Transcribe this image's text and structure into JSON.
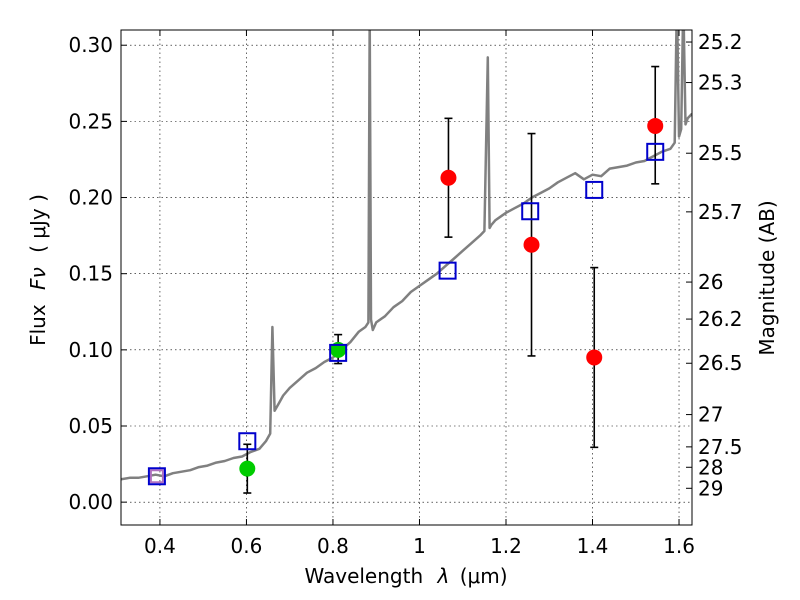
{
  "chart_data": {
    "type": "scatter",
    "xlabel": "Wavelength",
    "xlabel_symbol": "λ",
    "xlabel_unit": "(μm)",
    "ylabel": "Flux",
    "ylabel_symbol": "Fν",
    "ylabel_unit": "( μJy )",
    "ylabel_right": "Magnitude (AB)",
    "xlim": [
      0.31,
      1.63
    ],
    "ylim": [
      -0.015,
      0.31
    ],
    "grid": true,
    "x_ticks": [
      0.4,
      0.6,
      0.8,
      1.0,
      1.2,
      1.4,
      1.6
    ],
    "x_tick_labels": [
      "0.4",
      "0.6",
      "0.8",
      "1",
      "1.2",
      "1.4",
      "1.6"
    ],
    "y_ticks": [
      0.0,
      0.05,
      0.1,
      0.15,
      0.2,
      0.25,
      0.3
    ],
    "y_tick_labels": [
      "0.00",
      "0.05",
      "0.10",
      "0.15",
      "0.20",
      "0.25",
      "0.30"
    ],
    "right_axis_labels": [
      {
        "label": "25.2",
        "flux": 0.3021
      },
      {
        "label": "25.3",
        "flux": 0.2755
      },
      {
        "label": "25.5",
        "flux": 0.2291
      },
      {
        "label": "25.7",
        "flux": 0.1906
      },
      {
        "label": "26",
        "flux": 0.1445
      },
      {
        "label": "26.2",
        "flux": 0.1202
      },
      {
        "label": "26.5",
        "flux": 0.0912
      },
      {
        "label": "27",
        "flux": 0.0575
      },
      {
        "label": "27.5",
        "flux": 0.0363
      },
      {
        "label": "28",
        "flux": 0.0229
      },
      {
        "label": "29",
        "flux": 0.0091
      }
    ],
    "spectrum": {
      "name": "model spectrum",
      "color": "#808080",
      "x": [
        0.31,
        0.33,
        0.35,
        0.37,
        0.39,
        0.41,
        0.43,
        0.45,
        0.47,
        0.49,
        0.51,
        0.53,
        0.55,
        0.57,
        0.59,
        0.61,
        0.63,
        0.645,
        0.655,
        0.66,
        0.665,
        0.675,
        0.685,
        0.7,
        0.72,
        0.74,
        0.76,
        0.78,
        0.8,
        0.82,
        0.84,
        0.86,
        0.875,
        0.882,
        0.885,
        0.888,
        0.892,
        0.9,
        0.92,
        0.94,
        0.96,
        0.98,
        1.0,
        1.02,
        1.04,
        1.06,
        1.08,
        1.1,
        1.12,
        1.14,
        1.15,
        1.158,
        1.162,
        1.166,
        1.175,
        1.19,
        1.2,
        1.22,
        1.24,
        1.26,
        1.28,
        1.3,
        1.32,
        1.34,
        1.36,
        1.38,
        1.4,
        1.42,
        1.44,
        1.46,
        1.48,
        1.5,
        1.52,
        1.54,
        1.56,
        1.58,
        1.59,
        1.595,
        1.6,
        1.605,
        1.61,
        1.615,
        1.62,
        1.63
      ],
      "y": [
        0.015,
        0.016,
        0.016,
        0.017,
        0.018,
        0.017,
        0.019,
        0.02,
        0.021,
        0.023,
        0.024,
        0.026,
        0.027,
        0.029,
        0.03,
        0.033,
        0.035,
        0.04,
        0.045,
        0.115,
        0.06,
        0.065,
        0.07,
        0.075,
        0.08,
        0.085,
        0.088,
        0.092,
        0.095,
        0.1,
        0.105,
        0.112,
        0.115,
        0.118,
        0.32,
        0.12,
        0.113,
        0.118,
        0.122,
        0.128,
        0.132,
        0.138,
        0.142,
        0.146,
        0.15,
        0.155,
        0.16,
        0.165,
        0.17,
        0.175,
        0.178,
        0.292,
        0.18,
        0.182,
        0.185,
        0.188,
        0.19,
        0.193,
        0.196,
        0.2,
        0.203,
        0.206,
        0.21,
        0.213,
        0.216,
        0.212,
        0.215,
        0.214,
        0.219,
        0.22,
        0.221,
        0.223,
        0.224,
        0.227,
        0.23,
        0.232,
        0.236,
        0.33,
        0.24,
        0.245,
        0.33,
        0.248,
        0.252,
        0.255
      ]
    },
    "model_points": {
      "name": "model photometry",
      "marker": "open-square",
      "color": "#0000cc",
      "x": [
        0.393,
        0.602,
        0.812,
        1.065,
        1.256,
        1.404,
        1.545
      ],
      "y": [
        0.017,
        0.04,
        0.098,
        0.152,
        0.191,
        0.205,
        0.23
      ]
    },
    "detections": {
      "name": "observed fluxes",
      "marker": "filled-circle",
      "points": [
        {
          "x": 0.602,
          "y": 0.022,
          "err_low": 0.006,
          "err_high": 0.038,
          "color": "#00cc00"
        },
        {
          "x": 0.812,
          "y": 0.1,
          "err_low": 0.091,
          "err_high": 0.11,
          "color": "#00cc00"
        },
        {
          "x": 1.067,
          "y": 0.213,
          "err_low": 0.174,
          "err_high": 0.252,
          "color": "#ff0000"
        },
        {
          "x": 1.259,
          "y": 0.169,
          "err_low": 0.096,
          "err_high": 0.242,
          "color": "#ff0000"
        },
        {
          "x": 1.404,
          "y": 0.095,
          "err_low": 0.036,
          "err_high": 0.154,
          "color": "#ff0000"
        },
        {
          "x": 1.545,
          "y": 0.247,
          "err_low": 0.209,
          "err_high": 0.286,
          "color": "#ff0000"
        }
      ]
    },
    "upper_limit_marker": {
      "x": 0.393,
      "y": 0.017,
      "color": "#b070c0"
    }
  }
}
